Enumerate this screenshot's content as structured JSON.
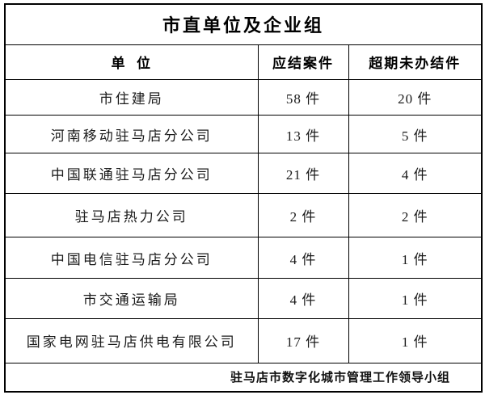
{
  "table": {
    "title": "市直单位及企业组",
    "columns": {
      "unit": "单  位",
      "pending": "应结案件",
      "overdue": "超期未办结件"
    },
    "rows": [
      {
        "unit": "市住建局",
        "pending": "58 件",
        "overdue": "20 件"
      },
      {
        "unit": "河南移动驻马店分公司",
        "pending": "13 件",
        "overdue": "5 件"
      },
      {
        "unit": "中国联通驻马店分公司",
        "pending": "21 件",
        "overdue": "4 件"
      },
      {
        "unit": "驻马店热力公司",
        "pending": "2 件",
        "overdue": "2 件"
      },
      {
        "unit": "中国电信驻马店分公司",
        "pending": "4 件",
        "overdue": "1 件"
      },
      {
        "unit": "市交通运输局",
        "pending": "4 件",
        "overdue": "1 件"
      },
      {
        "unit": "国家电网驻马店供电有限公司",
        "pending": "17 件",
        "overdue": "1 件"
      }
    ],
    "footer": "驻马店市数字化城市管理工作领导小组",
    "colors": {
      "border": "#000000",
      "text": "#1a1a1a",
      "background": "#ffffff"
    }
  }
}
